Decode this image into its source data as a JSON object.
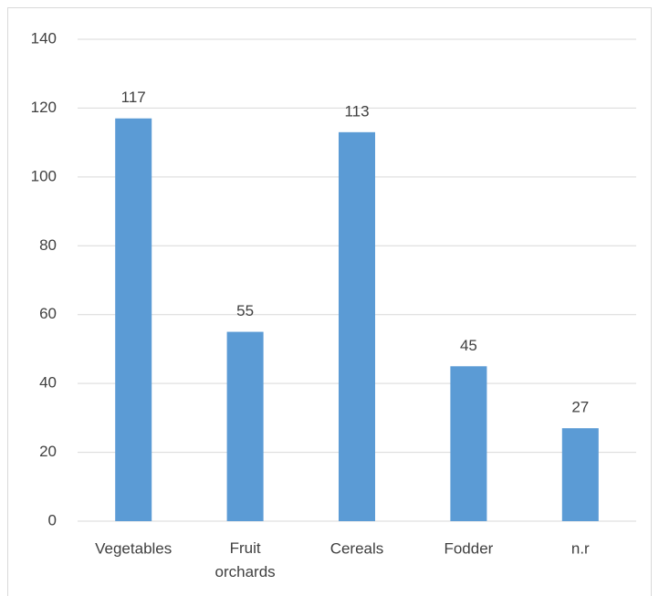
{
  "chart_data": {
    "type": "bar",
    "categories": [
      "Vegetables",
      "Fruit orchards",
      "Cereals",
      "Fodder",
      "n.r"
    ],
    "values": [
      117,
      55,
      113,
      45,
      27
    ],
    "color": "#5b9bd5",
    "ylim": [
      0,
      140
    ],
    "yticks": [
      0,
      20,
      40,
      60,
      80,
      100,
      120,
      140
    ],
    "grid": true,
    "data_labels": true
  }
}
